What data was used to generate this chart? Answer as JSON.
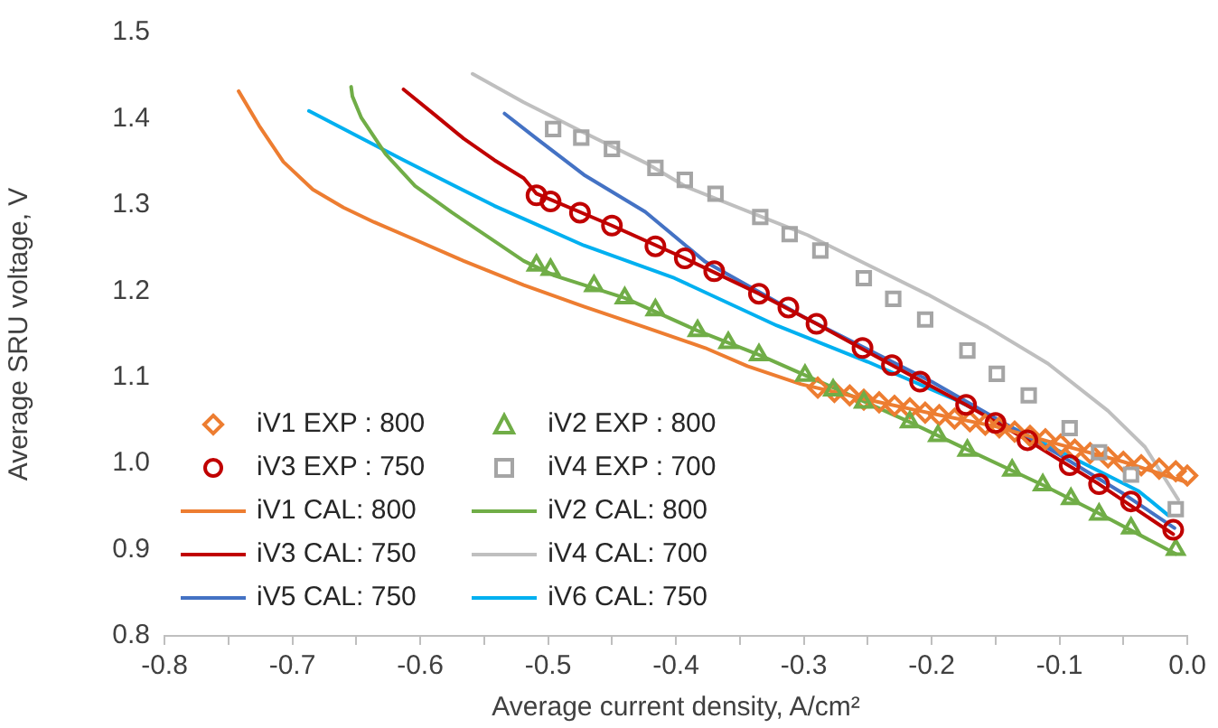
{
  "chart_data": {
    "type": "line",
    "xlabel": "Average current density, A/cm²",
    "ylabel": "Average SRU voltage, V",
    "xlim": [
      -0.8,
      0
    ],
    "ylim": [
      0.8,
      1.5
    ],
    "xticks": [
      -0.8,
      {
        "value": -0.75,
        "label": null
      },
      -0.7,
      {
        "value": -0.65,
        "label": null
      },
      -0.6,
      {
        "value": -0.55,
        "label": null
      },
      -0.5,
      {
        "value": -0.45,
        "label": null
      },
      -0.4,
      {
        "value": -0.35,
        "label": null
      },
      -0.3,
      {
        "value": -0.25,
        "label": null
      },
      -0.2,
      {
        "value": -0.15,
        "label": null
      },
      -0.1,
      {
        "value": -0.05,
        "label": null
      },
      {
        "value": 0,
        "label": "0.0"
      }
    ],
    "yticks": [
      0.8,
      0.9,
      {
        "value": 1,
        "label": "1.0"
      },
      1.1,
      1.2,
      1.3,
      1.4,
      1.5
    ],
    "grid": false,
    "legend": "bottom left",
    "series": [
      {
        "name": "iV1 EXP : 800",
        "type": "scatter",
        "marker": "diamond",
        "color": "#ed7d31",
        "x": [
          -0.289,
          -0.276,
          -0.264,
          -0.253,
          -0.241,
          -0.229,
          -0.217,
          -0.205,
          -0.194,
          -0.182,
          -0.17,
          -0.158,
          -0.147,
          -0.135,
          -0.123,
          -0.111,
          -0.099,
          -0.088,
          -0.076,
          -0.062,
          -0.05,
          -0.036,
          -0.022,
          -0.009,
          0
        ],
        "values": [
          1.088,
          1.083,
          1.079,
          1.074,
          1.071,
          1.067,
          1.064,
          1.059,
          1.056,
          1.052,
          1.049,
          1.045,
          1.042,
          1.037,
          1.032,
          1.028,
          1.022,
          1.016,
          1.012,
          1.007,
          1.002,
          0.998,
          0.994,
          0.991,
          0.986
        ]
      },
      {
        "name": "iV2 EXP : 800",
        "type": "scatter",
        "marker": "triangle",
        "color": "#70ad47",
        "x": [
          -0.509,
          -0.498,
          -0.464,
          -0.44,
          -0.416,
          -0.383,
          -0.359,
          -0.335,
          -0.299,
          -0.277,
          -0.253,
          -0.217,
          -0.195,
          -0.172,
          -0.137,
          -0.113,
          -0.091,
          -0.069,
          -0.044,
          -0.009
        ],
        "values": [
          1.23,
          1.225,
          1.206,
          1.192,
          1.178,
          1.154,
          1.14,
          1.126,
          1.102,
          1.085,
          1.071,
          1.048,
          1.032,
          1.015,
          0.992,
          0.975,
          0.959,
          0.941,
          0.925,
          0.9
        ]
      },
      {
        "name": "iV3 EXP : 750",
        "type": "scatter",
        "marker": "circle",
        "color": "#c00000",
        "x": [
          -0.509,
          -0.498,
          -0.475,
          -0.45,
          -0.416,
          -0.393,
          -0.37,
          -0.335,
          -0.312,
          -0.29,
          -0.254,
          -0.231,
          -0.209,
          -0.173,
          -0.15,
          -0.125,
          -0.092,
          -0.069,
          -0.044,
          -0.011
        ],
        "values": [
          1.311,
          1.304,
          1.291,
          1.276,
          1.252,
          1.238,
          1.223,
          1.197,
          1.181,
          1.162,
          1.134,
          1.114,
          1.095,
          1.068,
          1.047,
          1.027,
          0.998,
          0.976,
          0.956,
          0.923
        ]
      },
      {
        "name": "iV4 EXP : 700",
        "type": "scatter",
        "marker": "square",
        "color": "#a5a5a5",
        "x": [
          -0.496,
          -0.474,
          -0.45,
          -0.416,
          -0.393,
          -0.369,
          -0.334,
          -0.311,
          -0.287,
          -0.253,
          -0.23,
          -0.205,
          -0.172,
          -0.149,
          -0.124,
          -0.092,
          -0.069,
          -0.044,
          -0.009
        ],
        "values": [
          1.388,
          1.378,
          1.365,
          1.343,
          1.329,
          1.313,
          1.286,
          1.266,
          1.247,
          1.215,
          1.191,
          1.167,
          1.131,
          1.104,
          1.079,
          1.041,
          1.013,
          0.987,
          0.947
        ]
      },
      {
        "name": "iV1 CAL: 800",
        "type": "line",
        "marker": "none",
        "color": "#ed7d31",
        "x": [
          -0.742,
          -0.726,
          -0.707,
          -0.684,
          -0.66,
          -0.636,
          -0.603,
          -0.566,
          -0.519,
          -0.472,
          -0.424,
          -0.377,
          -0.344,
          -0.302,
          -0.25,
          -0.2,
          -0.15,
          -0.1,
          -0.05,
          0
        ],
        "values": [
          1.432,
          1.392,
          1.35,
          1.318,
          1.297,
          1.28,
          1.259,
          1.235,
          1.207,
          1.182,
          1.158,
          1.134,
          1.113,
          1.092,
          1.074,
          1.058,
          1.043,
          1.022,
          1.002,
          0.978
        ]
      },
      {
        "name": "iV2 CAL: 800",
        "type": "line",
        "marker": "none",
        "color": "#70ad47",
        "x": [
          -0.654,
          -0.653,
          -0.646,
          -0.627,
          -0.604,
          -0.575,
          -0.547,
          -0.519,
          -0.495,
          -0.44,
          -0.383,
          -0.335,
          -0.277,
          -0.217,
          -0.172,
          -0.113,
          -0.069,
          -0.009
        ],
        "values": [
          1.437,
          1.426,
          1.401,
          1.359,
          1.322,
          1.291,
          1.263,
          1.235,
          1.218,
          1.192,
          1.154,
          1.126,
          1.088,
          1.048,
          1.016,
          0.975,
          0.942,
          0.895
        ]
      },
      {
        "name": "iV3 CAL: 750",
        "type": "line",
        "marker": "none",
        "color": "#c00000",
        "x": [
          -0.613,
          -0.589,
          -0.566,
          -0.542,
          -0.519,
          -0.509,
          -0.45,
          -0.393,
          -0.335,
          -0.29,
          -0.231,
          -0.173,
          -0.125,
          -0.069,
          -0.011
        ],
        "values": [
          1.434,
          1.405,
          1.377,
          1.352,
          1.331,
          1.313,
          1.276,
          1.238,
          1.197,
          1.162,
          1.114,
          1.068,
          1.027,
          0.976,
          0.918
        ]
      },
      {
        "name": "iV4 CAL: 700",
        "type": "line",
        "marker": "none",
        "color": "#bfbfbf",
        "x": [
          -0.559,
          -0.519,
          -0.472,
          -0.424,
          -0.392,
          -0.297,
          -0.203,
          -0.156,
          -0.109,
          -0.062,
          -0.033,
          -0.007
        ],
        "values": [
          1.452,
          1.419,
          1.384,
          1.349,
          1.321,
          1.265,
          1.196,
          1.158,
          1.116,
          1.061,
          1.019,
          0.958
        ]
      },
      {
        "name": "iV5 CAL: 750",
        "type": "line",
        "marker": "none",
        "color": "#4472c4",
        "x": [
          -0.534,
          -0.509,
          -0.472,
          -0.424,
          -0.377,
          -0.3,
          -0.2,
          -0.1,
          -0.05,
          -0.01
        ],
        "values": [
          1.406,
          1.377,
          1.335,
          1.292,
          1.234,
          1.17,
          1.095,
          1.01,
          0.965,
          0.925
        ]
      },
      {
        "name": "iV6 CAL: 750",
        "type": "line",
        "marker": "none",
        "color": "#00b0f0",
        "x": [
          -0.687,
          -0.613,
          -0.542,
          -0.472,
          -0.401,
          -0.321,
          -0.25,
          -0.18,
          -0.109,
          -0.038,
          -0.015
        ],
        "values": [
          1.409,
          1.352,
          1.299,
          1.253,
          1.215,
          1.16,
          1.118,
          1.073,
          1.021,
          0.968,
          0.94
        ]
      }
    ]
  }
}
